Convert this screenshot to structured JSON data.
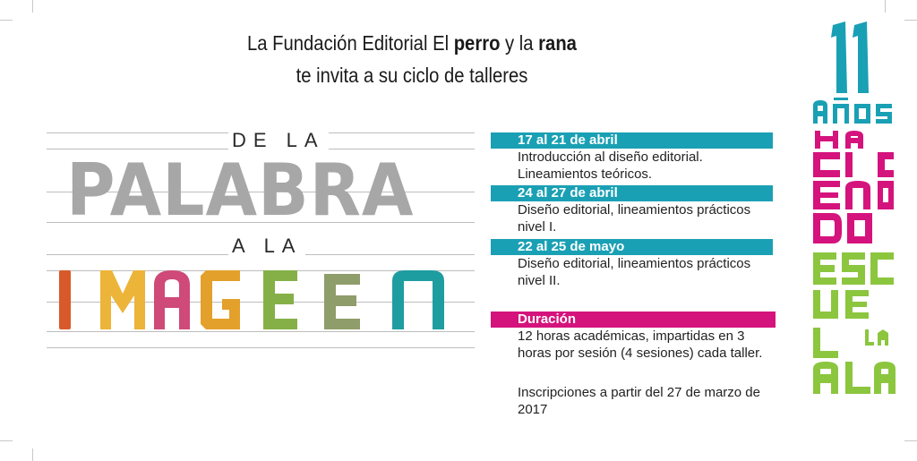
{
  "invitation": {
    "line1_pre": "La Fundación Editorial El ",
    "perro": "perro",
    "mid": " y la ",
    "rana": "rana",
    "line2": "te invita a su ciclo de talleres"
  },
  "title": {
    "de_la": "DE LA",
    "palabra": "PALABRA",
    "a_la": "A LA",
    "imagen": "IMAGEN",
    "imagen_colors": [
      "#d85a2a",
      "#edb43a",
      "#cf4a78",
      "#e3a02b",
      "#85b048",
      "#8f9d6a",
      "#1e9da0"
    ]
  },
  "schedule": [
    {
      "dates": "17 al 21 de abril",
      "description": [
        "Introducción al diseño editorial.",
        "Lineamientos teóricos."
      ]
    },
    {
      "dates": "24 al 27 de abril",
      "description": [
        "Diseño editorial, lineamientos prácticos",
        "nivel I."
      ]
    },
    {
      "dates": "22 al 25 de mayo",
      "description": [
        "Diseño editorial, lineamientos prácticos",
        "nivel II."
      ]
    }
  ],
  "duration": {
    "label": "Duración",
    "description": [
      "12 horas académicas, impartidas en 3",
      "horas por sesión (4 sesiones) cada taller."
    ]
  },
  "registration": "Inscripciones a partir del 27 de marzo de 2017",
  "anniversary": {
    "number": "11",
    "anos": "AÑOS",
    "haciendo": "HACIENDO",
    "escuela": "ESCUELA",
    "colors": {
      "teal": "#1aa0b4",
      "magenta": "#d5137d",
      "green": "#8cc63f"
    }
  }
}
